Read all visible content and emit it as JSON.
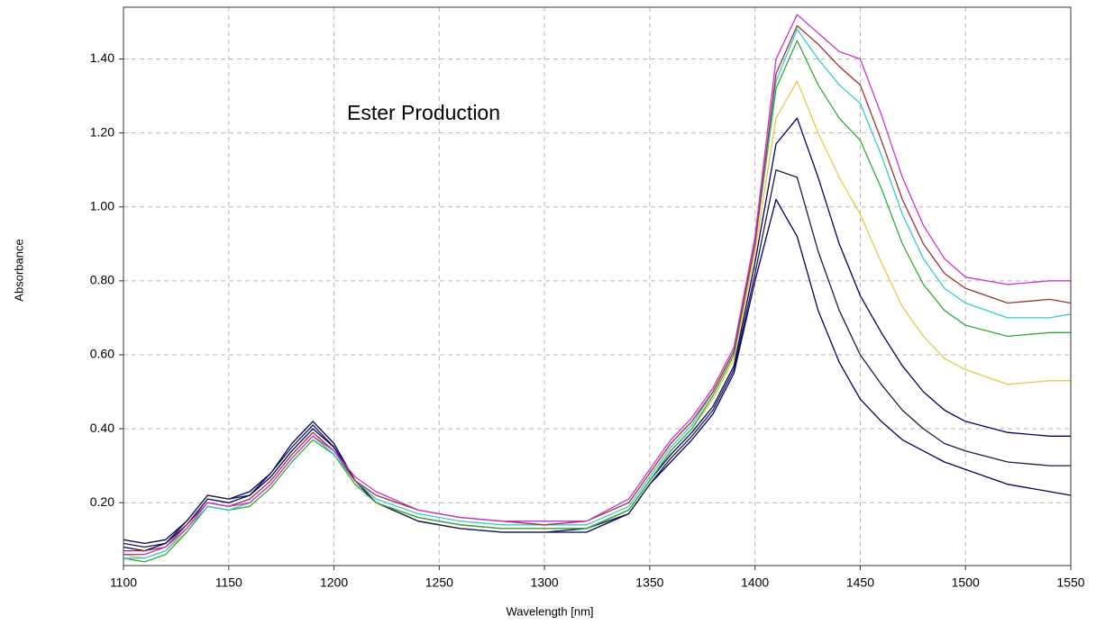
{
  "chart_data": {
    "type": "line",
    "title": "Ester Production",
    "x_label": "Wavelength [nm]",
    "y_label": "Absorbance",
    "x": [
      1100,
      1110,
      1120,
      1130,
      1140,
      1150,
      1160,
      1170,
      1180,
      1190,
      1200,
      1210,
      1220,
      1240,
      1260,
      1280,
      1300,
      1320,
      1340,
      1350,
      1360,
      1370,
      1380,
      1390,
      1400,
      1410,
      1420,
      1430,
      1440,
      1450,
      1460,
      1470,
      1480,
      1490,
      1500,
      1520,
      1540,
      1550
    ],
    "series": [
      {
        "color": "#000066",
        "values": [
          0.1,
          0.09,
          0.1,
          0.15,
          0.22,
          0.21,
          0.23,
          0.28,
          0.36,
          0.42,
          0.36,
          0.26,
          0.2,
          0.15,
          0.13,
          0.12,
          0.12,
          0.12,
          0.17,
          0.25,
          0.31,
          0.37,
          0.44,
          0.55,
          0.8,
          1.02,
          0.92,
          0.72,
          0.58,
          0.48,
          0.42,
          0.37,
          0.34,
          0.31,
          0.29,
          0.25,
          0.23,
          0.22
        ]
      },
      {
        "color": "#1a1a4d",
        "values": [
          0.09,
          0.08,
          0.09,
          0.15,
          0.22,
          0.21,
          0.22,
          0.28,
          0.35,
          0.41,
          0.35,
          0.26,
          0.2,
          0.15,
          0.13,
          0.12,
          0.12,
          0.13,
          0.17,
          0.25,
          0.32,
          0.38,
          0.45,
          0.56,
          0.82,
          1.1,
          1.08,
          0.88,
          0.72,
          0.6,
          0.52,
          0.45,
          0.4,
          0.36,
          0.34,
          0.31,
          0.3,
          0.3
        ]
      },
      {
        "color": "#000066",
        "values": [
          0.08,
          0.07,
          0.09,
          0.14,
          0.21,
          0.2,
          0.22,
          0.27,
          0.34,
          0.4,
          0.35,
          0.26,
          0.2,
          0.16,
          0.14,
          0.13,
          0.13,
          0.13,
          0.18,
          0.26,
          0.33,
          0.39,
          0.46,
          0.57,
          0.85,
          1.17,
          1.24,
          1.08,
          0.9,
          0.76,
          0.66,
          0.57,
          0.5,
          0.45,
          0.42,
          0.39,
          0.38,
          0.38
        ]
      },
      {
        "color": "#e6c84a",
        "values": [
          0.06,
          0.05,
          0.07,
          0.12,
          0.19,
          0.18,
          0.2,
          0.25,
          0.32,
          0.38,
          0.33,
          0.25,
          0.2,
          0.16,
          0.14,
          0.13,
          0.13,
          0.13,
          0.18,
          0.26,
          0.34,
          0.4,
          0.48,
          0.59,
          0.88,
          1.24,
          1.34,
          1.2,
          1.08,
          0.98,
          0.85,
          0.73,
          0.65,
          0.59,
          0.56,
          0.52,
          0.53,
          0.53
        ]
      },
      {
        "color": "#33aa33",
        "values": [
          0.05,
          0.04,
          0.06,
          0.12,
          0.19,
          0.18,
          0.19,
          0.24,
          0.31,
          0.37,
          0.33,
          0.25,
          0.2,
          0.16,
          0.14,
          0.13,
          0.13,
          0.13,
          0.18,
          0.26,
          0.34,
          0.4,
          0.49,
          0.6,
          0.9,
          1.32,
          1.45,
          1.33,
          1.24,
          1.18,
          1.05,
          0.9,
          0.79,
          0.72,
          0.68,
          0.65,
          0.66,
          0.66
        ]
      },
      {
        "color": "#33cccc",
        "values": [
          0.05,
          0.05,
          0.07,
          0.13,
          0.19,
          0.18,
          0.2,
          0.25,
          0.32,
          0.38,
          0.33,
          0.26,
          0.21,
          0.17,
          0.15,
          0.14,
          0.14,
          0.14,
          0.19,
          0.27,
          0.35,
          0.41,
          0.5,
          0.61,
          0.9,
          1.34,
          1.48,
          1.4,
          1.33,
          1.28,
          1.14,
          0.98,
          0.86,
          0.78,
          0.74,
          0.7,
          0.7,
          0.71
        ]
      },
      {
        "color": "#993333",
        "values": [
          0.07,
          0.07,
          0.08,
          0.14,
          0.2,
          0.19,
          0.21,
          0.26,
          0.33,
          0.39,
          0.34,
          0.26,
          0.22,
          0.18,
          0.16,
          0.15,
          0.14,
          0.15,
          0.2,
          0.28,
          0.36,
          0.42,
          0.5,
          0.61,
          0.9,
          1.36,
          1.49,
          1.44,
          1.38,
          1.33,
          1.18,
          1.02,
          0.9,
          0.82,
          0.78,
          0.74,
          0.75,
          0.74
        ]
      },
      {
        "color": "#cc33cc",
        "values": [
          0.06,
          0.06,
          0.08,
          0.13,
          0.2,
          0.19,
          0.2,
          0.25,
          0.32,
          0.38,
          0.34,
          0.27,
          0.23,
          0.18,
          0.16,
          0.15,
          0.15,
          0.15,
          0.21,
          0.29,
          0.37,
          0.43,
          0.51,
          0.62,
          0.92,
          1.4,
          1.52,
          1.47,
          1.42,
          1.4,
          1.25,
          1.08,
          0.95,
          0.86,
          0.81,
          0.79,
          0.8,
          0.8
        ]
      }
    ],
    "xlim": [
      1100,
      1550
    ],
    "xticks": [
      1100,
      1150,
      1200,
      1250,
      1300,
      1350,
      1400,
      1450,
      1500,
      1550
    ],
    "ylim": [
      0.03,
      1.54
    ],
    "yticks": [
      {
        "value": 0.2,
        "label": "0.20"
      },
      {
        "value": 0.4,
        "label": "0.40"
      },
      {
        "value": 0.6,
        "label": "0.60"
      },
      {
        "value": 0.8,
        "label": "0.80"
      },
      {
        "value": 1,
        "label": "1.00"
      },
      {
        "value": 1.2,
        "label": "1.20"
      },
      {
        "value": 1.4,
        "label": "1.40"
      }
    ],
    "grid": true
  }
}
